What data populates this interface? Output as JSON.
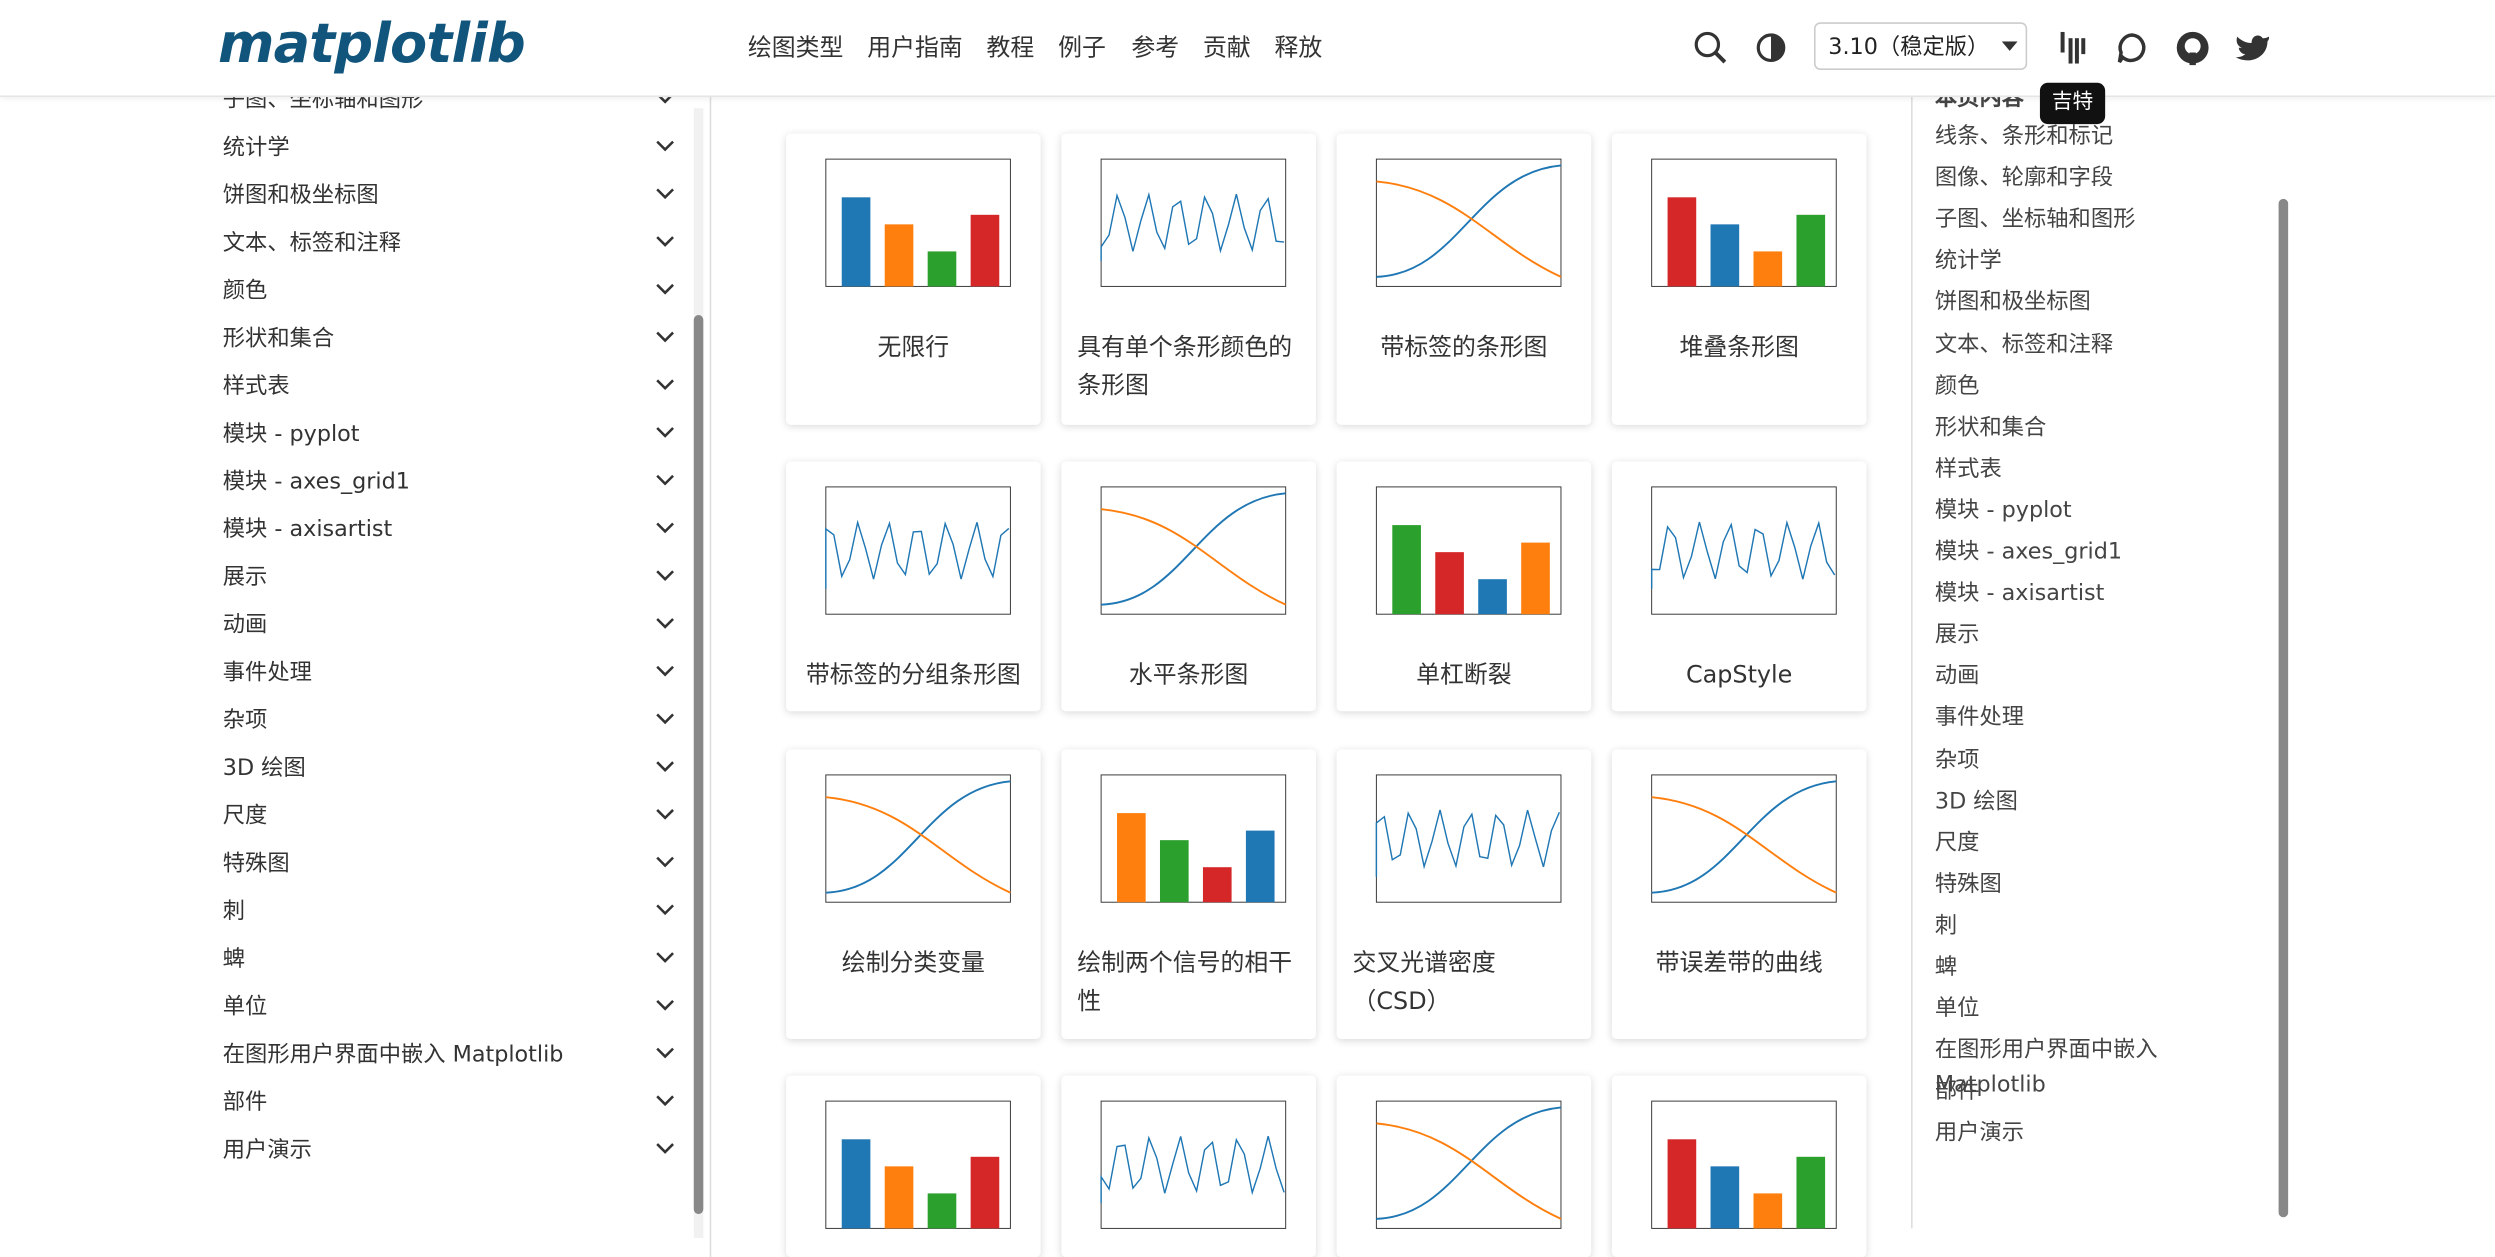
{
  "header": {
    "logo": "matplotlib",
    "nav": [
      "绘图类型",
      "用户指南",
      "教程",
      "例子",
      "参考",
      "贡献",
      "释放"
    ],
    "version": "3.10（稳定版）",
    "tooltip": "吉特"
  },
  "sidebar": {
    "items": [
      "子图、坐标轴和图形",
      "统计学",
      "饼图和极坐标图",
      "文本、标签和注释",
      "颜色",
      "形状和集合",
      "样式表",
      "模块 - pyplot",
      "模块 - axes_grid1",
      "模块 - axisartist",
      "展示",
      "动画",
      "事件处理",
      "杂项",
      "3D 绘图",
      "尺度",
      "特殊图",
      "刺",
      "蜱",
      "单位",
      "在图形用户界面中嵌入 Matplotlib",
      "部件",
      "用户演示"
    ]
  },
  "gallery": {
    "rows": [
      [
        "无限行",
        "具有单个条形颜色的条形图",
        "带标签的条形图",
        "堆叠条形图"
      ],
      [
        "带标签的分组条形图",
        "水平条形图",
        "单杠断裂",
        "CapStyle"
      ],
      [
        "绘制分类变量",
        "绘制两个信号的相干性",
        "交叉光谱密度（CSD）",
        "带误差带的曲线"
      ]
    ]
  },
  "toc": {
    "heading": "本页内容",
    "items": [
      "线条、条形和标记",
      "图像、轮廓和字段",
      "子图、坐标轴和图形",
      "统计学",
      "饼图和极坐标图",
      "文本、标签和注释",
      "颜色",
      "形状和集合",
      "样式表",
      "模块 - pyplot",
      "模块 - axes_grid1",
      "模块 - axisartist",
      "展示",
      "动画",
      "事件处理",
      "杂项",
      "3D 绘图",
      "尺度",
      "特殊图",
      "刺",
      "蜱",
      "单位",
      "在图形用户界面中嵌入 Matplotlib",
      "部件",
      "用户演示"
    ]
  }
}
